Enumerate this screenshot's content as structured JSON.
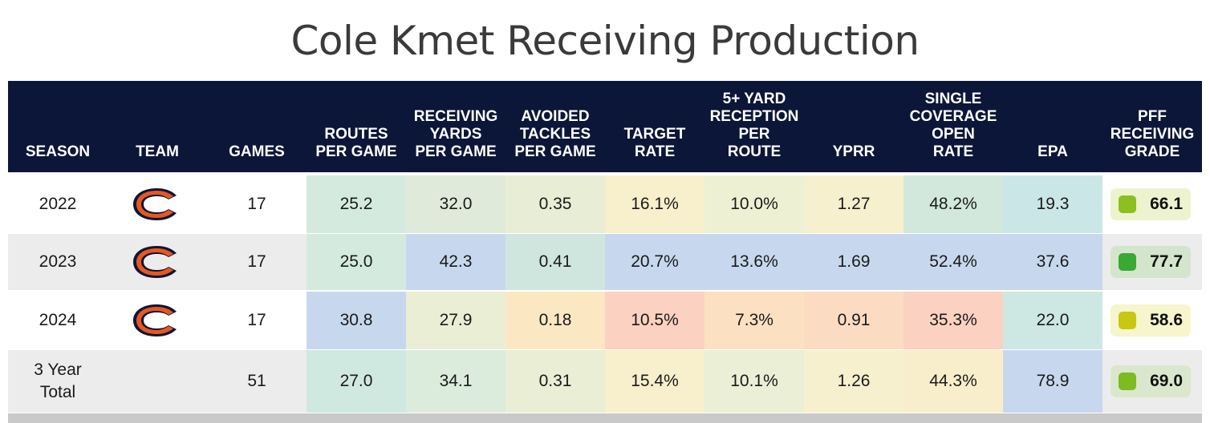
{
  "title": "Cole Kmet Receiving Production",
  "headers": [
    "SEASON",
    "TEAM",
    "GAMES",
    "ROUTES\nPER GAME",
    "RECEIVING\nYARDS\nPER GAME",
    "AVOIDED\nTACKLES\nPER GAME",
    "TARGET\nRATE",
    "5+ YARD\nRECEPTION\nPER\nROUTE",
    "YPRR",
    "SINGLE\nCOVERAGE\nOPEN\nRATE",
    "EPA",
    "PFF\nRECEIVING\nGRADE"
  ],
  "team_logo_icon": "chicago-bears-c-logo-icon",
  "colors": {
    "header_bg": "#0c1638",
    "logo_orange": "#e8571e",
    "logo_navy": "#0c1638"
  },
  "rows": [
    {
      "season": "2022",
      "has_logo": true,
      "games": "17",
      "stats": [
        "25.2",
        "32.0",
        "0.35",
        "16.1%",
        "10.0%",
        "1.27",
        "48.2%",
        "19.3"
      ],
      "stat_colors": [
        "#d4eadf",
        "#dfeadb",
        "#e8eed6",
        "#f8efcc",
        "#eef0d4",
        "#f6f0cf",
        "#d3e8dd",
        "#cbe6e6"
      ],
      "grade": "66.1",
      "grade_dot": "#8cc021",
      "grade_bg": "#eef3cf"
    },
    {
      "season": "2023",
      "has_logo": true,
      "games": "17",
      "stats": [
        "25.0",
        "42.3",
        "0.41",
        "20.7%",
        "13.6%",
        "1.69",
        "52.4%",
        "37.6"
      ],
      "stat_colors": [
        "#d4eadf",
        "#c7d8ee",
        "#cfe6de",
        "#c7d8ee",
        "#c7d8ee",
        "#c7d8ee",
        "#c7d8ee",
        "#c7d8ee"
      ],
      "grade": "77.7",
      "grade_dot": "#39a935",
      "grade_bg": "#d3e5cc"
    },
    {
      "season": "2024",
      "has_logo": true,
      "games": "17",
      "stats": [
        "30.8",
        "27.9",
        "0.18",
        "10.5%",
        "7.3%",
        "0.91",
        "35.3%",
        "22.0"
      ],
      "stat_colors": [
        "#c7d8ee",
        "#eaeed5",
        "#fbe8c3",
        "#fbd2c1",
        "#fbe0c2",
        "#fbdcc2",
        "#fbd2c1",
        "#cde7e3"
      ],
      "grade": "58.6",
      "grade_dot": "#c9c713",
      "grade_bg": "#f7f5cc"
    },
    {
      "season": "3 Year\nTotal",
      "has_logo": false,
      "games": "51",
      "stats": [
        "27.0",
        "34.1",
        "0.31",
        "15.4%",
        "10.1%",
        "1.26",
        "44.3%",
        "78.9"
      ],
      "stat_colors": [
        "#cfe8e0",
        "#dbebdc",
        "#eaeed5",
        "#f8efcc",
        "#ebefd5",
        "#f6f0cf",
        "#f9eecb",
        "#c7d8ee"
      ],
      "grade": "69.0",
      "grade_dot": "#7cbb22",
      "grade_bg": "#dbe7cd"
    }
  ]
}
